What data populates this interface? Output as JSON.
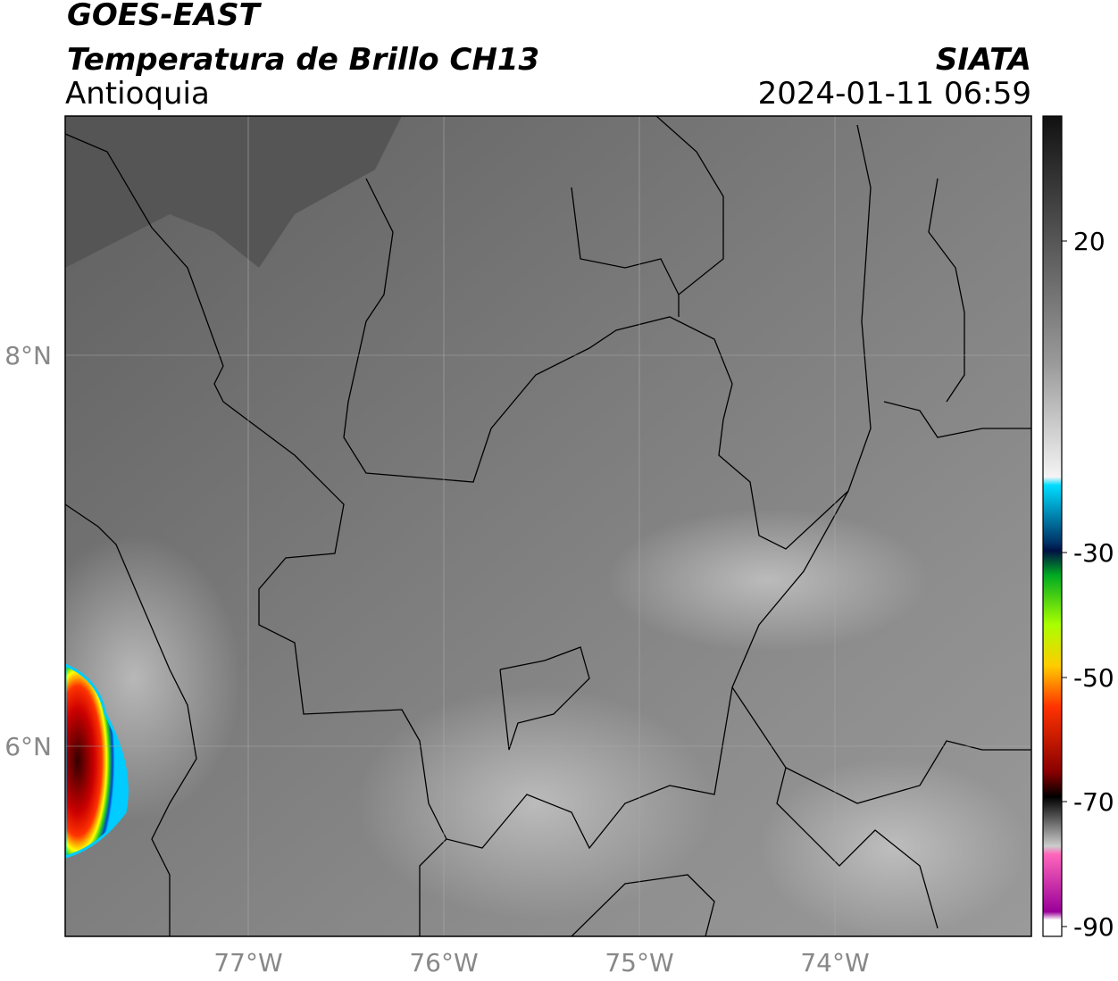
{
  "header": {
    "title": "GOES-EAST",
    "subtitle": "Temperatura de Brillo CH13",
    "region": "Antioquia",
    "source": "SIATA",
    "datetime": "2024-01-11 06:59"
  },
  "map": {
    "lat_ticks": [
      "8°N",
      "6°N"
    ],
    "lon_ticks": [
      "77°W",
      "76°W",
      "75°W",
      "74°W"
    ]
  },
  "colorbar": {
    "ticks": [
      "20",
      "-30",
      "-50",
      "-70",
      "-90"
    ]
  }
}
